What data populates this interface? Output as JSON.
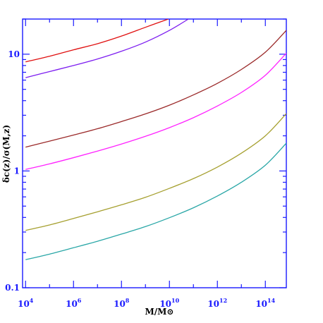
{
  "chart_data": {
    "type": "line",
    "xlabel": "M/M⊙",
    "ylabel": "δc(z)/σ(M,z)",
    "x_scale": "log",
    "y_scale": "log",
    "xlim": [
      7500.0,
      750000000000000.0
    ],
    "ylim": [
      0.1,
      20
    ],
    "x_major_ticks": [
      10000.0,
      1000000.0,
      100000000.0,
      10000000000.0,
      1000000000000.0,
      100000000000000.0
    ],
    "x_tick_labels": [
      {
        "base": "10",
        "exp": "4"
      },
      {
        "base": "10",
        "exp": "6"
      },
      {
        "base": "10",
        "exp": "8"
      },
      {
        "base": "10",
        "exp": "10"
      },
      {
        "base": "10",
        "exp": "12"
      },
      {
        "base": "10",
        "exp": "14"
      }
    ],
    "y_major_ticks": [
      0.1,
      1,
      10
    ],
    "y_tick_labels": [
      "0.1",
      "1",
      "10"
    ],
    "grid": false,
    "axis_color": "#1a1aff",
    "series": [
      {
        "color": "#e01010",
        "x": [
          10000.0,
          100000.0,
          1000000.0,
          10000000.0,
          100000000.0,
          1000000000.0,
          9000000000.0
        ],
        "y": [
          8.6,
          9.6,
          10.9,
          12.3,
          14.3,
          17.0,
          20.0
        ]
      },
      {
        "color": "#7d1ef0",
        "x": [
          10000.0,
          100000.0,
          1000000.0,
          10000000.0,
          100000000.0,
          1000000000.0,
          10000000000.0,
          62000000000.0
        ],
        "y": [
          6.3,
          7.1,
          8.0,
          9.1,
          10.6,
          12.7,
          16.0,
          20.0
        ]
      },
      {
        "color": "#9b2a2a",
        "x": [
          10000.0,
          100000.0,
          1000000.0,
          10000000.0,
          100000000.0,
          1000000000.0,
          10000000000.0,
          100000000000.0,
          1000000000000.0,
          10000000000000.0,
          100000000000000.0,
          750000000000000.0
        ],
        "y": [
          1.6,
          1.8,
          2.03,
          2.3,
          2.65,
          3.08,
          3.66,
          4.48,
          5.63,
          7.4,
          10.4,
          16.0
        ]
      },
      {
        "color": "#ff22ff",
        "x": [
          10000.0,
          100000.0,
          1000000.0,
          10000000.0,
          100000000.0,
          1000000000.0,
          10000000000.0,
          100000000000.0,
          1000000000000.0,
          10000000000000.0,
          100000000000000.0,
          750000000000000.0
        ],
        "y": [
          1.03,
          1.15,
          1.3,
          1.48,
          1.7,
          1.98,
          2.35,
          2.86,
          3.6,
          4.7,
          6.6,
          10.2
        ]
      },
      {
        "color": "#a6a030",
        "x": [
          10000.0,
          100000.0,
          1000000.0,
          10000000.0,
          100000000.0,
          1000000000.0,
          10000000000.0,
          100000000000.0,
          1000000000000.0,
          10000000000000.0,
          100000000000000.0,
          750000000000000.0
        ],
        "y": [
          0.31,
          0.345,
          0.392,
          0.447,
          0.513,
          0.595,
          0.71,
          0.86,
          1.08,
          1.42,
          2.0,
          3.1
        ]
      },
      {
        "color": "#2aa7a7",
        "x": [
          10000.0,
          100000.0,
          1000000.0,
          10000000.0,
          100000000.0,
          1000000000.0,
          10000000000.0,
          100000000000.0,
          1000000000000.0,
          10000000000000.0,
          100000000000000.0,
          750000000000000.0
        ],
        "y": [
          0.174,
          0.194,
          0.22,
          0.25,
          0.288,
          0.334,
          0.398,
          0.484,
          0.61,
          0.8,
          1.12,
          1.73
        ]
      }
    ]
  }
}
